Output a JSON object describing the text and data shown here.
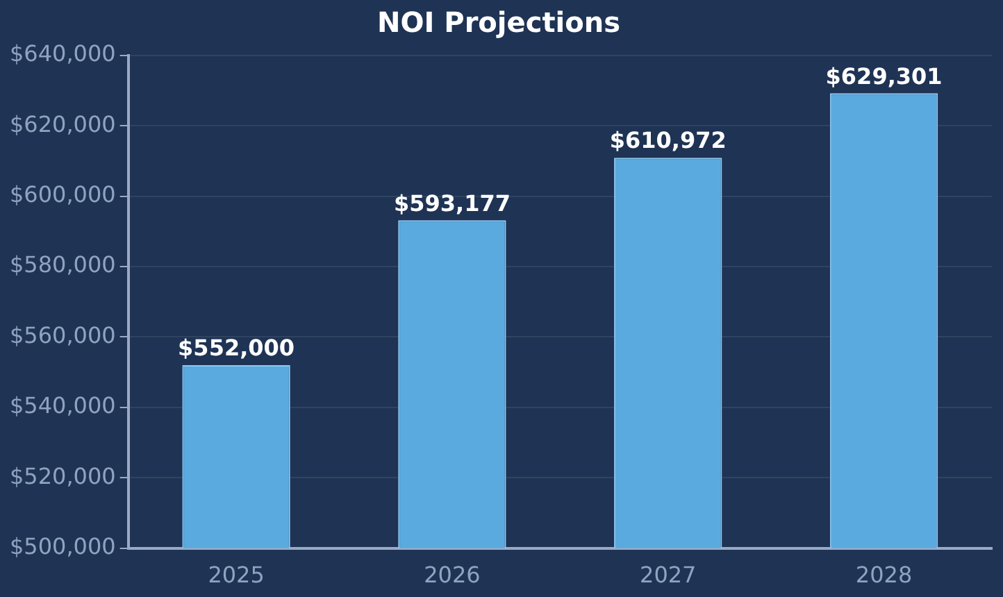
{
  "chart_data": {
    "type": "bar",
    "title": "NOI Projections",
    "categories": [
      "2025",
      "2026",
      "2027",
      "2028"
    ],
    "values": [
      552000,
      593177,
      610972,
      629301
    ],
    "value_labels": [
      "$552,000",
      "$593,177",
      "$610,972",
      "$629,301"
    ],
    "color": "#5aaae0",
    "ylim": [
      500000,
      640000
    ],
    "yticks": [
      {
        "value": 500000,
        "label": "$500,000"
      },
      {
        "value": 520000,
        "label": "$520,000"
      },
      {
        "value": 540000,
        "label": "$540,000"
      },
      {
        "value": 560000,
        "label": "$560,000"
      },
      {
        "value": 580000,
        "label": "$580,000"
      },
      {
        "value": 600000,
        "label": "$600,000"
      },
      {
        "value": 620000,
        "label": "$620,000"
      },
      {
        "value": 640000,
        "label": "$640,000"
      }
    ],
    "grid": "y",
    "legend": false
  }
}
